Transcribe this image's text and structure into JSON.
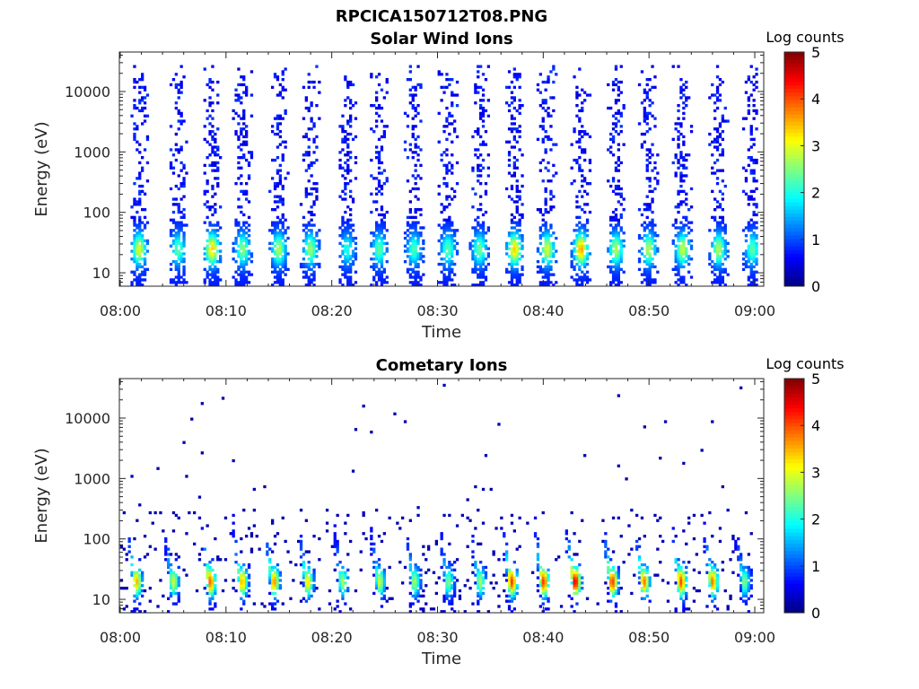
{
  "figure_title": "RPCICA150712T08.PNG",
  "chart_data": [
    {
      "type": "heatmap",
      "title": "Solar Wind Ions",
      "xlabel": "Time",
      "ylabel": "Energy (eV)",
      "y_scale": "log",
      "ylim": [
        6,
        45000
      ],
      "y_ticks": [
        10,
        100,
        1000,
        10000
      ],
      "y_tick_labels": [
        "10",
        "100",
        "1000",
        "10000"
      ],
      "x_ticks": [
        "08:00",
        "08:10",
        "08:20",
        "08:30",
        "08:40",
        "08:50",
        "09:00"
      ],
      "colorbar": {
        "label": "Log counts",
        "range": [
          0,
          5
        ],
        "ticks": [
          "0",
          "1",
          "2",
          "3",
          "4",
          "5"
        ],
        "colormap": "jet"
      },
      "pulse_times_min": [
        1.8,
        5.5,
        8.7,
        11.6,
        15.0,
        18.0,
        21.5,
        24.5,
        27.8,
        31.0,
        34.0,
        37.3,
        40.4,
        43.6,
        46.9,
        50.0,
        53.2,
        56.6,
        59.8
      ],
      "ion_peak_energy_eV": 25,
      "peak_log_counts": [
        2.2,
        1.6,
        2.6,
        1.8,
        2.0,
        1.9,
        1.3,
        1.6,
        1.5,
        1.6,
        1.7,
        2.6,
        2.2,
        2.8,
        2.0,
        2.0,
        2.1,
        2.0,
        1.6
      ]
    },
    {
      "type": "heatmap",
      "title": "Cometary Ions",
      "xlabel": "Time",
      "ylabel": "Energy (eV)",
      "y_scale": "log",
      "ylim": [
        6,
        45000
      ],
      "y_ticks": [
        10,
        100,
        1000,
        10000
      ],
      "y_tick_labels": [
        "10",
        "100",
        "1000",
        "10000"
      ],
      "x_ticks": [
        "08:00",
        "08:10",
        "08:20",
        "08:30",
        "08:40",
        "08:50",
        "09:00"
      ],
      "colorbar": {
        "label": "Log counts",
        "range": [
          0,
          5
        ],
        "ticks": [
          "0",
          "1",
          "2",
          "3",
          "4",
          "5"
        ],
        "colormap": "jet"
      },
      "pulse_times_min": [
        1.5,
        5.0,
        8.5,
        11.5,
        14.5,
        17.7,
        21.0,
        24.5,
        27.8,
        31.0,
        34.0,
        37.0,
        40.0,
        43.0,
        46.5,
        49.5,
        53.0,
        56.0,
        59.0
      ],
      "ion_peak_energy_eV": 20,
      "peak_log_counts": [
        3.0,
        2.4,
        3.4,
        3.0,
        3.2,
        2.8,
        2.2,
        2.4,
        2.2,
        2.0,
        2.2,
        3.6,
        3.6,
        4.0,
        3.6,
        3.3,
        3.5,
        3.3,
        2.0
      ]
    }
  ]
}
